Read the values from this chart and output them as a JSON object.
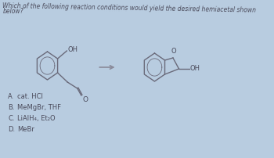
{
  "background_color": "#b8cce0",
  "title_line1": "Which of the following reaction conditions would yield the desired hemiacetal shown",
  "title_line2": "below?",
  "choices_label": [
    "A.",
    "B.",
    "C.",
    "D."
  ],
  "choices_text": [
    "cat. HCl",
    "MeMgBr, THF",
    "LiAlH₄, Et₂O",
    "MeBr"
  ],
  "text_color": "#4a4a5a",
  "title_fontsize": 5.5,
  "choice_fontsize": 6.0,
  "line_color": "#6a6a7a",
  "lw": 1.0
}
